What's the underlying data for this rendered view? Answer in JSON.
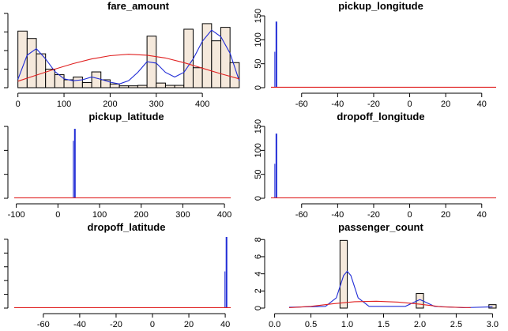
{
  "chart_data": [
    {
      "type": "bar",
      "title": "fare_amount",
      "x_ticks": [
        0,
        100,
        200,
        300,
        400
      ],
      "x_ticks_shown": [
        "0",
        "100",
        "200",
        "300",
        "400"
      ],
      "xlim": [
        -8,
        482
      ],
      "ylim": [
        0,
        16
      ],
      "y_ticks": [
        0,
        4,
        8,
        12,
        16
      ],
      "y_labels_visible": false,
      "bins": [
        [
          0,
          20,
          12.2
        ],
        [
          20,
          40,
          10.6
        ],
        [
          40,
          60,
          7.3
        ],
        [
          60,
          80,
          4.0
        ],
        [
          80,
          100,
          2.8
        ],
        [
          100,
          120,
          1.7
        ],
        [
          120,
          140,
          2.3
        ],
        [
          140,
          160,
          1.1
        ],
        [
          160,
          180,
          3.4
        ],
        [
          180,
          200,
          1.7
        ],
        [
          200,
          220,
          0.8
        ],
        [
          220,
          240,
          0.4
        ],
        [
          240,
          260,
          0.4
        ],
        [
          260,
          280,
          0.5
        ],
        [
          280,
          300,
          11.1
        ],
        [
          300,
          320,
          1.0
        ],
        [
          320,
          340,
          0.5
        ],
        [
          340,
          360,
          0.5
        ],
        [
          360,
          380,
          12.6
        ],
        [
          380,
          400,
          4.3
        ],
        [
          400,
          420,
          13.8
        ],
        [
          420,
          440,
          10.1
        ],
        [
          440,
          460,
          13.0
        ],
        [
          460,
          480,
          5.4
        ]
      ],
      "density": [
        [
          0,
          1.8
        ],
        [
          20,
          7.0
        ],
        [
          40,
          8.4
        ],
        [
          60,
          6.2
        ],
        [
          80,
          3.5
        ],
        [
          100,
          1.9
        ],
        [
          120,
          1.5
        ],
        [
          140,
          1.7
        ],
        [
          160,
          2.3
        ],
        [
          180,
          1.8
        ],
        [
          200,
          1.2
        ],
        [
          220,
          0.8
        ],
        [
          240,
          1.5
        ],
        [
          260,
          3.3
        ],
        [
          280,
          5.6
        ],
        [
          300,
          5.3
        ],
        [
          320,
          3.3
        ],
        [
          340,
          2.3
        ],
        [
          360,
          3.3
        ],
        [
          380,
          6.2
        ],
        [
          400,
          10.0
        ],
        [
          420,
          12.4
        ],
        [
          440,
          11.0
        ],
        [
          460,
          7.4
        ],
        [
          480,
          1.5
        ]
      ],
      "normal": [
        [
          0,
          1.4
        ],
        [
          40,
          2.7
        ],
        [
          80,
          4.0
        ],
        [
          120,
          5.2
        ],
        [
          160,
          6.2
        ],
        [
          200,
          6.9
        ],
        [
          240,
          7.2
        ],
        [
          280,
          7.0
        ],
        [
          320,
          6.4
        ],
        [
          360,
          5.4
        ],
        [
          400,
          4.2
        ],
        [
          440,
          3.0
        ],
        [
          480,
          1.9
        ]
      ]
    },
    {
      "type": "bar",
      "title": "pickup_longitude",
      "x_ticks": [
        -60,
        -40,
        -20,
        0,
        20,
        40
      ],
      "x_ticks_shown": [
        "-60",
        "-40",
        "-20",
        "0",
        "20",
        "40"
      ],
      "xlim": [
        -77,
        48
      ],
      "ylim": [
        0,
        155
      ],
      "y_ticks": [
        0,
        50,
        100,
        150
      ],
      "y_labels_visible": true,
      "spike": {
        "x": -74.0,
        "value": 138,
        "inner": 75
      },
      "normal": [
        [
          -77,
          1
        ],
        [
          48,
          1
        ]
      ]
    },
    {
      "type": "bar",
      "title": "pickup_latitude",
      "x_ticks": [
        -100,
        0,
        100,
        200,
        300,
        400
      ],
      "x_ticks_shown": [
        "-100",
        "0",
        "100",
        "200",
        "300",
        "400"
      ],
      "xlim": [
        -105,
        415
      ],
      "ylim": [
        0,
        155
      ],
      "y_ticks": [
        0,
        50,
        100,
        150
      ],
      "y_labels_visible": false,
      "spike": {
        "x": 40.7,
        "value": 145,
        "inner": 120
      },
      "normal": [
        [
          -105,
          1
        ],
        [
          415,
          1
        ]
      ]
    },
    {
      "type": "bar",
      "title": "dropoff_longitude",
      "x_ticks": [
        -60,
        -40,
        -20,
        0,
        20,
        40
      ],
      "x_ticks_shown": [
        "-60",
        "-40",
        "-20",
        "0",
        "20",
        "40"
      ],
      "xlim": [
        -77,
        48
      ],
      "ylim": [
        0,
        155
      ],
      "y_ticks": [
        0,
        50,
        100,
        150
      ],
      "y_labels_visible": true,
      "spike": {
        "x": -74.0,
        "value": 135,
        "inner": 72
      },
      "normal": [
        [
          -77,
          1
        ],
        [
          48,
          1
        ]
      ]
    },
    {
      "type": "bar",
      "title": "dropoff_latitude",
      "x_ticks": [
        -60,
        -40,
        -20,
        0,
        20,
        40
      ],
      "x_ticks_shown": [
        "-60",
        "-40",
        "-20",
        "0",
        "20",
        "40"
      ],
      "xlim": [
        -76,
        43
      ],
      "ylim": [
        0,
        155
      ],
      "y_ticks": [
        0,
        30,
        60,
        90,
        120,
        150
      ],
      "y_labels_visible": false,
      "spike": {
        "x": 40.7,
        "value": 155,
        "inner": 80
      },
      "normal": [
        [
          -76,
          1
        ],
        [
          43,
          1
        ]
      ]
    },
    {
      "type": "bar",
      "title": "passenger_count",
      "x_ticks": [
        0.0,
        0.5,
        1.0,
        1.5,
        2.0,
        2.5,
        3.0
      ],
      "x_ticks_shown": [
        "0.0",
        "0.5",
        "1.0",
        "1.5",
        "2.0",
        "2.5",
        "3.0"
      ],
      "xlim": [
        -0.05,
        3.05
      ],
      "ylim": [
        0,
        8.3
      ],
      "y_ticks": [
        0,
        2,
        4,
        6,
        8
      ],
      "y_labels_visible": true,
      "bins": [
        [
          0.9,
          1.0,
          7.9
        ],
        [
          1.95,
          2.05,
          1.7
        ],
        [
          2.95,
          3.05,
          0.4
        ]
      ],
      "density": [
        [
          0.2,
          0.1
        ],
        [
          0.7,
          0.2
        ],
        [
          0.85,
          1.2
        ],
        [
          0.95,
          3.8
        ],
        [
          1.0,
          4.3
        ],
        [
          1.05,
          3.8
        ],
        [
          1.15,
          1.2
        ],
        [
          1.3,
          0.2
        ],
        [
          1.8,
          0.2
        ],
        [
          1.95,
          0.8
        ],
        [
          2.0,
          1.0
        ],
        [
          2.05,
          0.8
        ],
        [
          2.2,
          0.2
        ],
        [
          2.6,
          0.05
        ],
        [
          3.0,
          0.15
        ]
      ],
      "normal": [
        [
          0.2,
          0.05
        ],
        [
          0.5,
          0.2
        ],
        [
          0.8,
          0.5
        ],
        [
          1.1,
          0.75
        ],
        [
          1.4,
          0.8
        ],
        [
          1.7,
          0.7
        ],
        [
          2.0,
          0.45
        ],
        [
          2.3,
          0.15
        ],
        [
          2.7,
          0.05
        ]
      ]
    }
  ]
}
